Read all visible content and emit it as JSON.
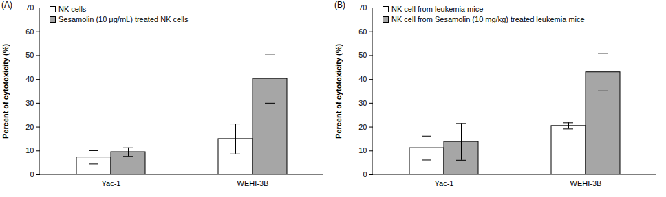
{
  "chart_data": [
    {
      "type": "bar",
      "title": "(A)",
      "categories": [
        "Yac-1",
        "WEHI-3B"
      ],
      "series": [
        {
          "name": "NK cells",
          "color": "#ffffff",
          "values": [
            7.3,
            15.0
          ],
          "errors": [
            2.8,
            6.3
          ]
        },
        {
          "name": "Sesamolin (10 μg/mL) treated NK cells",
          "color": "#a6a6a6",
          "values": [
            9.5,
            40.3
          ],
          "errors": [
            1.8,
            10.3
          ]
        }
      ],
      "y_label": "Percent of cytotoxicity (%)",
      "ylim": [
        0,
        70
      ],
      "yticks": [
        0,
        10,
        20,
        30,
        40,
        50,
        60,
        70
      ],
      "legend": "upper left"
    },
    {
      "type": "bar",
      "title": "(B)",
      "categories": [
        "Yac-1",
        "WEHI-3B"
      ],
      "series": [
        {
          "name": "NK cell from leukemia mice",
          "color": "#ffffff",
          "values": [
            11.2,
            20.5
          ],
          "errors": [
            5.0,
            1.3
          ]
        },
        {
          "name": "NK cell from Sesamolin (10 mg/kg) treated leukemia mice",
          "color": "#a6a6a6",
          "values": [
            13.8,
            43.0
          ],
          "errors": [
            7.7,
            7.8
          ]
        }
      ],
      "y_label": "Percent of cytotoxicity (%)",
      "ylim": [
        0,
        70
      ],
      "yticks": [
        0,
        10,
        20,
        30,
        40,
        50,
        60,
        70
      ],
      "legend": "upper left"
    }
  ]
}
